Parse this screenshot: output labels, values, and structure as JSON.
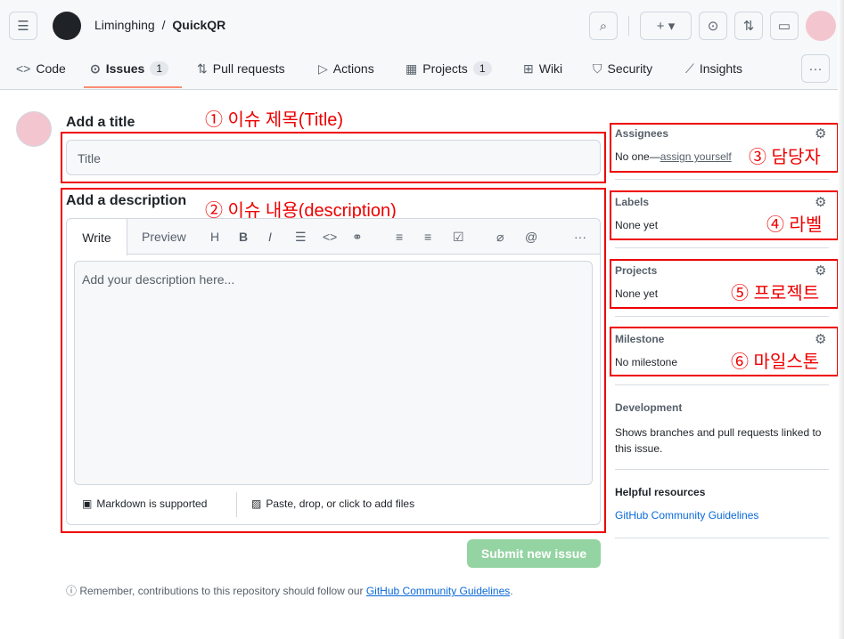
{
  "header": {
    "owner": "Liminghing",
    "sep": "/",
    "repo": "QuickQR"
  },
  "tabs": [
    {
      "label": "Code"
    },
    {
      "label": "Issues",
      "count": "1"
    },
    {
      "label": "Pull requests"
    },
    {
      "label": "Actions"
    },
    {
      "label": "Projects",
      "count": "1"
    },
    {
      "label": "Wiki"
    },
    {
      "label": "Security"
    },
    {
      "label": "Insights"
    }
  ],
  "form": {
    "title_heading": "Add a title",
    "title_placeholder": "Title",
    "desc_heading": "Add a description",
    "write_tab": "Write",
    "preview_tab": "Preview",
    "desc_placeholder": "Add your description here...",
    "markdown": "Markdown is supported",
    "attach": "Paste, drop, or click to add files",
    "submit": "Submit new issue",
    "note_prefix": "Remember, contributions to this repository should follow our ",
    "note_link": "GitHub Community Guidelines",
    "note_suffix": "."
  },
  "sidebar": {
    "assignees": "Assignees",
    "assignees_prefix": "No one—",
    "assign_yourself": "assign yourself",
    "labels": "Labels",
    "labels_value": "None yet",
    "projects": "Projects",
    "projects_value": "None yet",
    "milestone": "Milestone",
    "milestone_value": "No milestone",
    "development": "Development",
    "development_text": "Shows branches and pull requests linked to this issue.",
    "helpful": "Helpful resources",
    "helpful_link": "GitHub Community Guidelines"
  },
  "annotations": [
    "① 이슈 제목(Title)",
    "② 이슈 내용(description)",
    "③ 담당자",
    "④ 라벨",
    "⑤ 프로젝트",
    "⑥ 마일스톤"
  ],
  "colors": {
    "annotation": "#ee0000",
    "submit": "#94d3a2",
    "tab_underline": "#fd8c73",
    "link": "#0969da"
  }
}
